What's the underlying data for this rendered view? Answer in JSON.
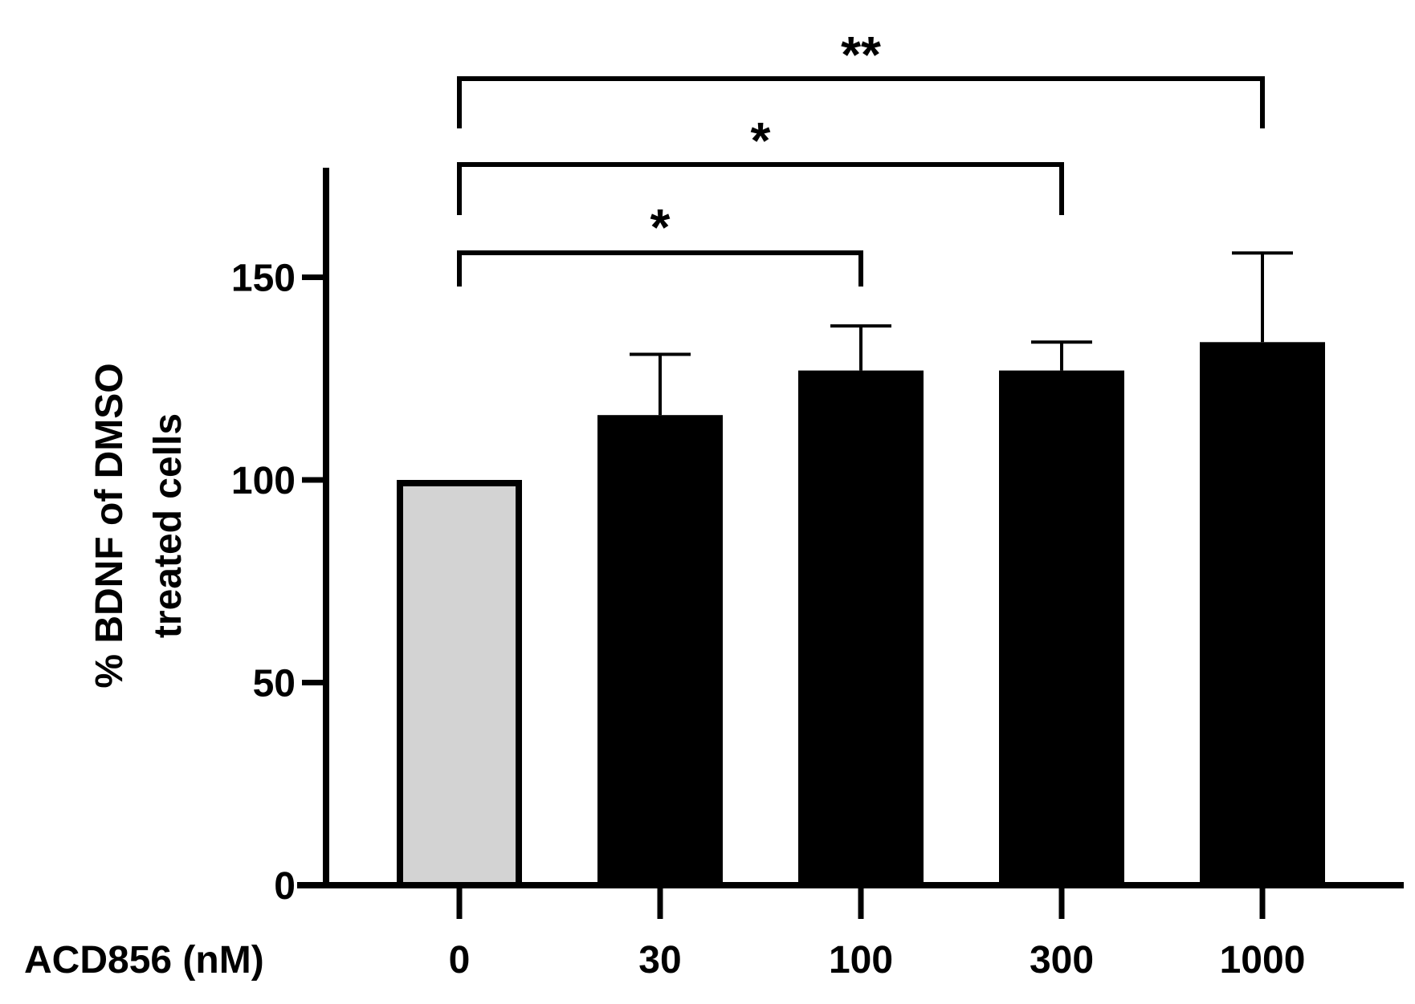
{
  "chart_data": {
    "type": "bar",
    "categories": [
      "0",
      "30",
      "100",
      "300",
      "1000"
    ],
    "values": [
      100,
      116,
      127,
      127,
      134
    ],
    "error_upper": [
      100,
      131,
      138,
      134,
      156
    ],
    "bar_colors": [
      "#d3d3d3",
      "#000000",
      "#000000",
      "#000000",
      "#000000"
    ],
    "x_axis_title": "ACD856 (nM)",
    "y_axis_title_lines": [
      "% BDNF of DMSO",
      "treated cells"
    ],
    "ylim": [
      0,
      175
    ],
    "yticks": [
      0,
      50,
      100,
      150
    ],
    "grid": false,
    "significance": [
      {
        "from": 0,
        "to": 2,
        "label": "*"
      },
      {
        "from": 0,
        "to": 3,
        "label": "*"
      },
      {
        "from": 0,
        "to": 4,
        "label": "**"
      }
    ]
  }
}
